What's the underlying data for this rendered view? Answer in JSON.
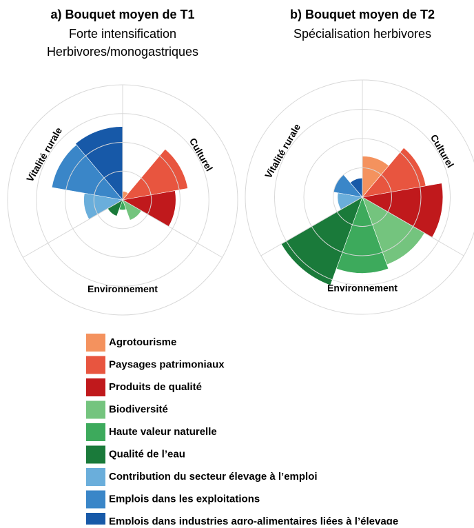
{
  "chart_data": [
    {
      "type": "polar_bar",
      "title": "a) Bouquet moyen de T1",
      "subtitle": [
        "Forte intensification",
        "Herbivores/monogastriques"
      ],
      "groups": [
        "Culturel",
        "Environnement",
        "Vitalité rurale"
      ],
      "values": [
        0.3,
        2.3,
        1.85,
        0.75,
        0.35,
        0.6,
        1.35,
        2.5,
        2.55
      ],
      "rlim": [
        0,
        4
      ],
      "rticks": [
        1,
        2,
        3,
        4
      ]
    },
    {
      "type": "polar_bar",
      "title": "b) Bouquet moyen de T2",
      "subtitle": [
        "Spécialisation herbivores"
      ],
      "groups": [
        "Culturel",
        "Environnement",
        "Vitalité rurale"
      ],
      "values": [
        1.4,
        2.2,
        2.75,
        2.45,
        2.6,
        3.2,
        0.85,
        1.0,
        0.65
      ],
      "rlim": [
        0,
        4
      ],
      "rticks": [
        1,
        2,
        3,
        4
      ]
    }
  ],
  "legend": {
    "labels": [
      "Agrotourisme",
      "Paysages patrimoniaux",
      "Produits de qualité",
      "Biodiversité",
      "Haute valeur naturelle",
      "Qualité de l’eau",
      "Contribution du secteur élevage à l’emploi",
      "Emplois dans les exploitations",
      "Emplois dans industries agro-alimentaires liées à l’élevage"
    ],
    "colors": [
      "#f4925e",
      "#e8553f",
      "#c0191c",
      "#74c47e",
      "#3daa5c",
      "#1a7a3a",
      "#6aaedb",
      "#3a86c8",
      "#1759a8"
    ]
  }
}
